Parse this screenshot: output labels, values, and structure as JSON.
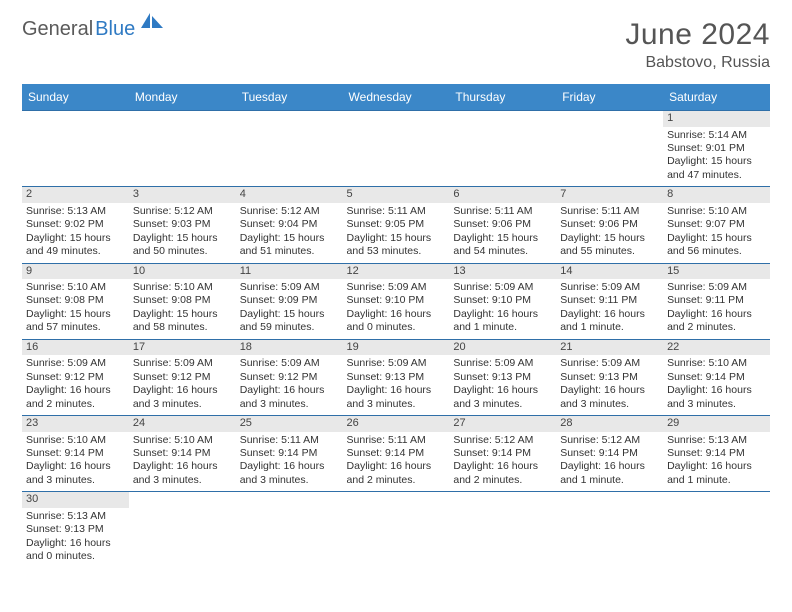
{
  "logo": {
    "text1": "General",
    "text2": "Blue"
  },
  "title": "June 2024",
  "location": "Babstovo, Russia",
  "colors": {
    "header_bg": "#3b87c8",
    "header_text": "#ffffff",
    "daynum_bg": "#e8e8e8",
    "border": "#2f6fa8",
    "body_text": "#333333",
    "title_text": "#555555",
    "logo_gray": "#5a5a5a",
    "logo_blue": "#2f7ac3"
  },
  "weekdays": [
    "Sunday",
    "Monday",
    "Tuesday",
    "Wednesday",
    "Thursday",
    "Friday",
    "Saturday"
  ],
  "weeks": [
    {
      "nums": [
        "",
        "",
        "",
        "",
        "",
        "",
        "1"
      ],
      "cells": [
        "",
        "",
        "",
        "",
        "",
        "",
        "Sunrise: 5:14 AM\nSunset: 9:01 PM\nDaylight: 15 hours and 47 minutes."
      ]
    },
    {
      "nums": [
        "2",
        "3",
        "4",
        "5",
        "6",
        "7",
        "8"
      ],
      "cells": [
        "Sunrise: 5:13 AM\nSunset: 9:02 PM\nDaylight: 15 hours and 49 minutes.",
        "Sunrise: 5:12 AM\nSunset: 9:03 PM\nDaylight: 15 hours and 50 minutes.",
        "Sunrise: 5:12 AM\nSunset: 9:04 PM\nDaylight: 15 hours and 51 minutes.",
        "Sunrise: 5:11 AM\nSunset: 9:05 PM\nDaylight: 15 hours and 53 minutes.",
        "Sunrise: 5:11 AM\nSunset: 9:06 PM\nDaylight: 15 hours and 54 minutes.",
        "Sunrise: 5:11 AM\nSunset: 9:06 PM\nDaylight: 15 hours and 55 minutes.",
        "Sunrise: 5:10 AM\nSunset: 9:07 PM\nDaylight: 15 hours and 56 minutes."
      ]
    },
    {
      "nums": [
        "9",
        "10",
        "11",
        "12",
        "13",
        "14",
        "15"
      ],
      "cells": [
        "Sunrise: 5:10 AM\nSunset: 9:08 PM\nDaylight: 15 hours and 57 minutes.",
        "Sunrise: 5:10 AM\nSunset: 9:08 PM\nDaylight: 15 hours and 58 minutes.",
        "Sunrise: 5:09 AM\nSunset: 9:09 PM\nDaylight: 15 hours and 59 minutes.",
        "Sunrise: 5:09 AM\nSunset: 9:10 PM\nDaylight: 16 hours and 0 minutes.",
        "Sunrise: 5:09 AM\nSunset: 9:10 PM\nDaylight: 16 hours and 1 minute.",
        "Sunrise: 5:09 AM\nSunset: 9:11 PM\nDaylight: 16 hours and 1 minute.",
        "Sunrise: 5:09 AM\nSunset: 9:11 PM\nDaylight: 16 hours and 2 minutes."
      ]
    },
    {
      "nums": [
        "16",
        "17",
        "18",
        "19",
        "20",
        "21",
        "22"
      ],
      "cells": [
        "Sunrise: 5:09 AM\nSunset: 9:12 PM\nDaylight: 16 hours and 2 minutes.",
        "Sunrise: 5:09 AM\nSunset: 9:12 PM\nDaylight: 16 hours and 3 minutes.",
        "Sunrise: 5:09 AM\nSunset: 9:12 PM\nDaylight: 16 hours and 3 minutes.",
        "Sunrise: 5:09 AM\nSunset: 9:13 PM\nDaylight: 16 hours and 3 minutes.",
        "Sunrise: 5:09 AM\nSunset: 9:13 PM\nDaylight: 16 hours and 3 minutes.",
        "Sunrise: 5:09 AM\nSunset: 9:13 PM\nDaylight: 16 hours and 3 minutes.",
        "Sunrise: 5:10 AM\nSunset: 9:14 PM\nDaylight: 16 hours and 3 minutes."
      ]
    },
    {
      "nums": [
        "23",
        "24",
        "25",
        "26",
        "27",
        "28",
        "29"
      ],
      "cells": [
        "Sunrise: 5:10 AM\nSunset: 9:14 PM\nDaylight: 16 hours and 3 minutes.",
        "Sunrise: 5:10 AM\nSunset: 9:14 PM\nDaylight: 16 hours and 3 minutes.",
        "Sunrise: 5:11 AM\nSunset: 9:14 PM\nDaylight: 16 hours and 3 minutes.",
        "Sunrise: 5:11 AM\nSunset: 9:14 PM\nDaylight: 16 hours and 2 minutes.",
        "Sunrise: 5:12 AM\nSunset: 9:14 PM\nDaylight: 16 hours and 2 minutes.",
        "Sunrise: 5:12 AM\nSunset: 9:14 PM\nDaylight: 16 hours and 1 minute.",
        "Sunrise: 5:13 AM\nSunset: 9:14 PM\nDaylight: 16 hours and 1 minute."
      ]
    },
    {
      "nums": [
        "30",
        "",
        "",
        "",
        "",
        "",
        ""
      ],
      "cells": [
        "Sunrise: 5:13 AM\nSunset: 9:13 PM\nDaylight: 16 hours and 0 minutes.",
        "",
        "",
        "",
        "",
        "",
        ""
      ]
    }
  ]
}
